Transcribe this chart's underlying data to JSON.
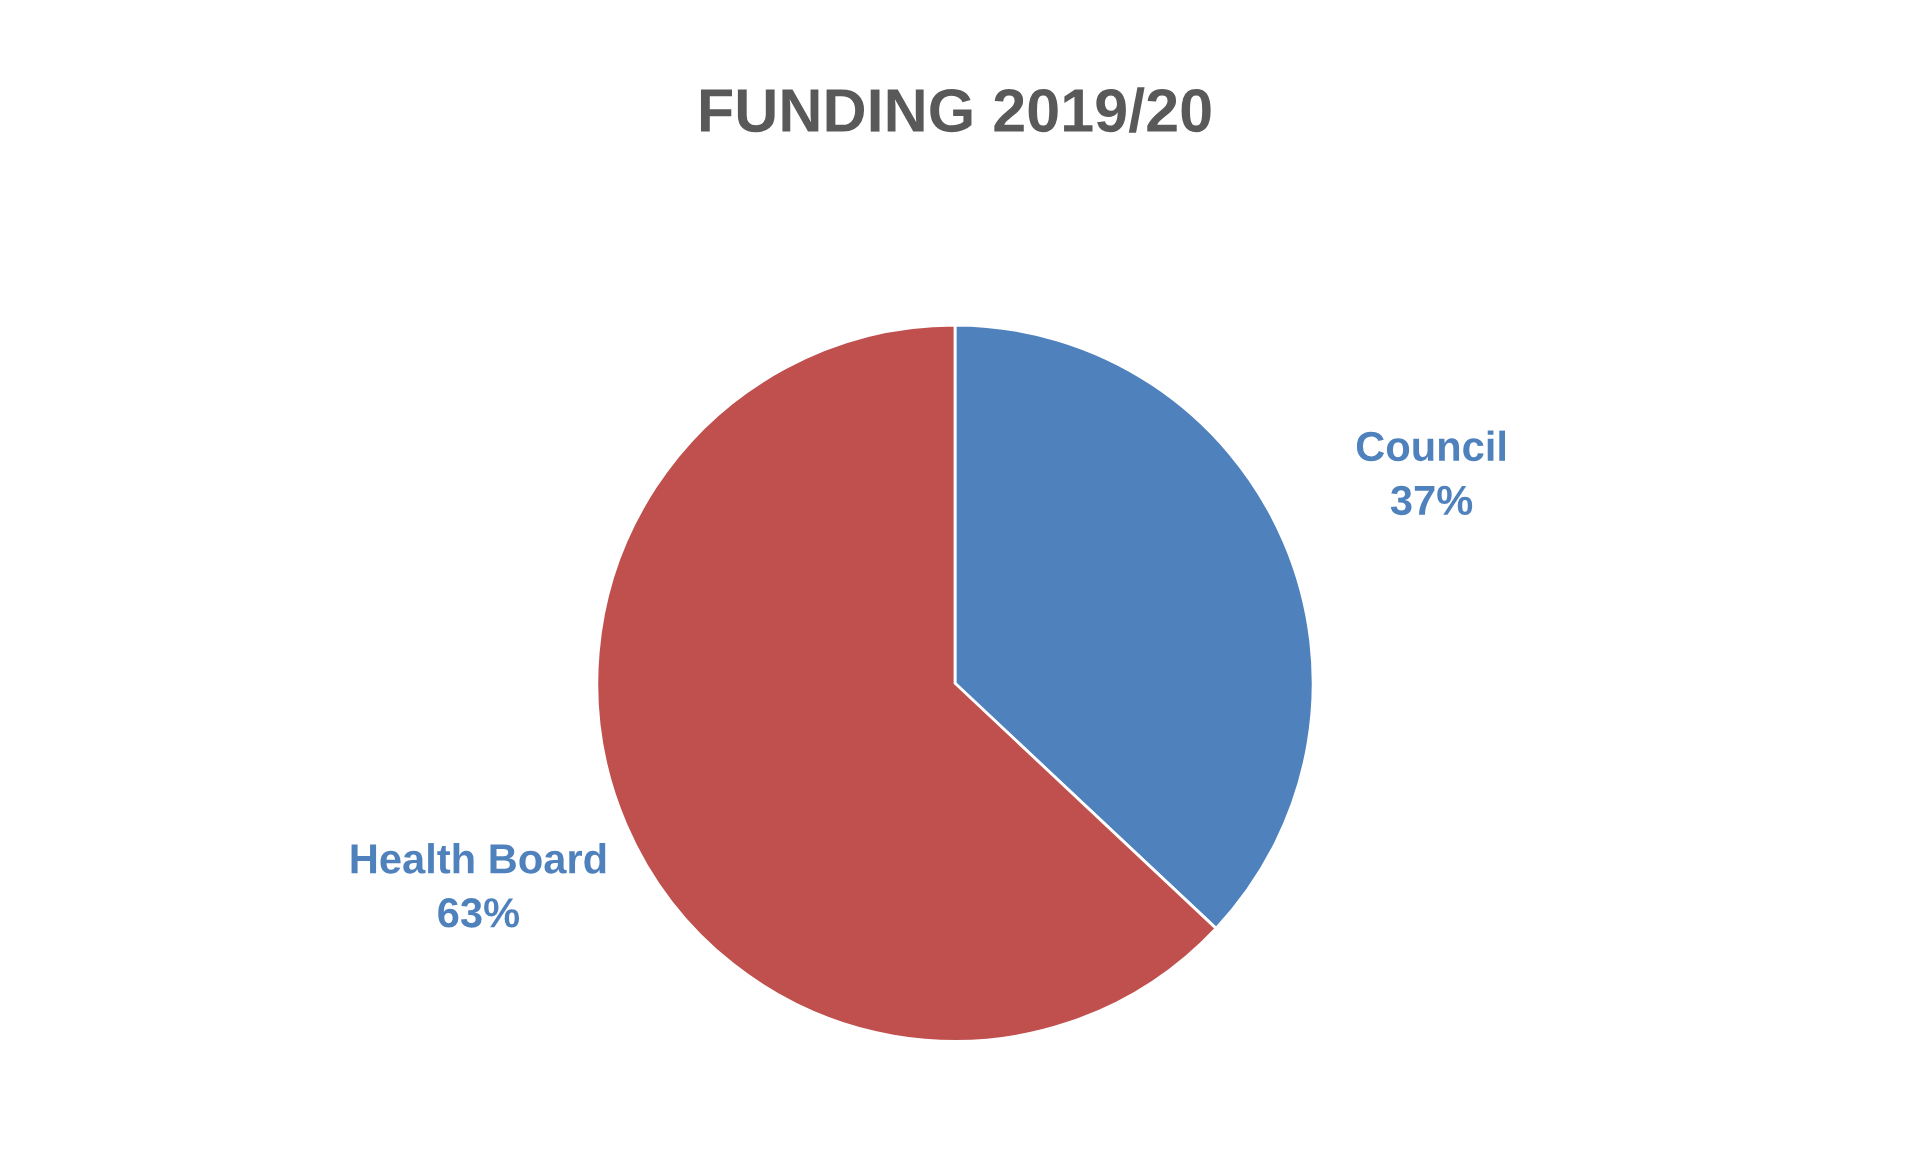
{
  "chart_data": {
    "type": "pie",
    "title": "FUNDING 2019/20",
    "categories": [
      "Council",
      "Health Board"
    ],
    "values": [
      37,
      63
    ],
    "value_labels": [
      "37%",
      "63%"
    ],
    "colors": [
      "#4f81bd",
      "#c0504d"
    ],
    "legend": false
  }
}
